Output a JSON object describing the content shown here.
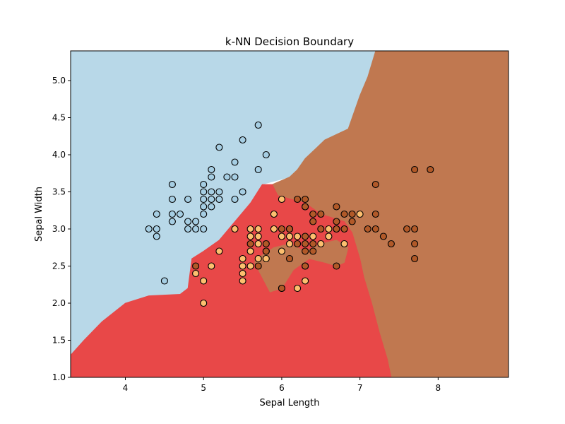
{
  "chart_data": {
    "type": "scatter",
    "title": "k-NN Decision Boundary",
    "xlabel": "Sepal Length",
    "ylabel": "Sepal Width",
    "xlim": [
      3.3,
      8.9
    ],
    "ylim": [
      1.0,
      5.4
    ],
    "xticks": [
      "4",
      "5",
      "6",
      "7",
      "8"
    ],
    "yticks": [
      "1.0",
      "1.5",
      "2.0",
      "2.5",
      "3.0",
      "3.5",
      "4.0",
      "4.5",
      "5.0"
    ],
    "grid": false,
    "legend": "none",
    "regions": [
      {
        "class": 0,
        "color": "#b8d8e8",
        "polygon": [
          [
            3.3,
            1.3
          ],
          [
            3.47,
            1.5
          ],
          [
            3.7,
            1.75
          ],
          [
            4.0,
            2.0
          ],
          [
            4.3,
            2.1
          ],
          [
            4.7,
            2.12
          ],
          [
            4.8,
            2.2
          ],
          [
            4.85,
            2.6
          ],
          [
            5.0,
            2.7
          ],
          [
            5.2,
            2.85
          ],
          [
            5.4,
            3.1
          ],
          [
            5.6,
            3.35
          ],
          [
            5.75,
            3.6
          ],
          [
            6.1,
            3.7
          ],
          [
            6.2,
            3.8
          ],
          [
            6.3,
            3.95
          ],
          [
            6.45,
            4.1
          ],
          [
            6.55,
            4.2
          ],
          [
            6.85,
            4.35
          ],
          [
            7.0,
            4.8
          ],
          [
            7.1,
            5.05
          ],
          [
            7.2,
            5.4
          ],
          [
            3.3,
            5.4
          ]
        ]
      },
      {
        "class": 2,
        "color": "#c07850",
        "polygon": [
          [
            8.9,
            5.4
          ],
          [
            7.2,
            5.4
          ],
          [
            7.1,
            5.05
          ],
          [
            7.0,
            4.8
          ],
          [
            6.85,
            4.35
          ],
          [
            6.55,
            4.2
          ],
          [
            6.45,
            4.1
          ],
          [
            6.3,
            3.95
          ],
          [
            6.2,
            3.8
          ],
          [
            6.1,
            3.7
          ],
          [
            5.88,
            3.6
          ],
          [
            5.95,
            3.45
          ],
          [
            6.3,
            3.35
          ],
          [
            6.5,
            3.2
          ],
          [
            6.8,
            3.1
          ],
          [
            6.9,
            2.95
          ],
          [
            7.0,
            2.6
          ],
          [
            7.05,
            2.35
          ],
          [
            7.15,
            2.0
          ],
          [
            7.25,
            1.6
          ],
          [
            7.35,
            1.25
          ],
          [
            7.4,
            1.0
          ],
          [
            8.9,
            1.0
          ]
        ]
      },
      {
        "class": 1,
        "color": "#e84848",
        "polygon": [
          [
            3.3,
            1.0
          ],
          [
            3.3,
            1.3
          ],
          [
            3.47,
            1.5
          ],
          [
            3.7,
            1.75
          ],
          [
            4.0,
            2.0
          ],
          [
            4.3,
            2.1
          ],
          [
            4.7,
            2.12
          ],
          [
            4.8,
            2.2
          ],
          [
            4.85,
            2.6
          ],
          [
            5.0,
            2.7
          ],
          [
            5.2,
            2.85
          ],
          [
            5.4,
            3.1
          ],
          [
            5.6,
            3.35
          ],
          [
            5.75,
            3.6
          ],
          [
            5.88,
            3.6
          ],
          [
            5.95,
            3.45
          ],
          [
            6.3,
            3.35
          ],
          [
            6.5,
            3.2
          ],
          [
            6.8,
            3.1
          ],
          [
            6.9,
            2.95
          ],
          [
            7.0,
            2.6
          ],
          [
            7.05,
            2.35
          ],
          [
            7.15,
            2.0
          ],
          [
            7.25,
            1.6
          ],
          [
            7.35,
            1.25
          ],
          [
            7.4,
            1.0
          ]
        ]
      },
      {
        "class": 2,
        "color": "#c07850",
        "polygon": [
          [
            5.65,
            2.55
          ],
          [
            5.75,
            2.35
          ],
          [
            5.85,
            2.15
          ],
          [
            6.0,
            2.2
          ],
          [
            6.15,
            2.45
          ],
          [
            6.35,
            2.6
          ],
          [
            6.55,
            2.55
          ],
          [
            6.7,
            2.5
          ],
          [
            6.8,
            2.55
          ],
          [
            6.85,
            2.75
          ],
          [
            6.7,
            2.85
          ],
          [
            6.5,
            2.8
          ],
          [
            6.3,
            2.7
          ],
          [
            6.1,
            2.8
          ],
          [
            5.9,
            2.75
          ],
          [
            5.75,
            2.65
          ]
        ]
      }
    ],
    "series": [
      {
        "class": 0,
        "color": "#a6cee3",
        "points": [
          [
            4.3,
            3.0
          ],
          [
            4.4,
            2.9
          ],
          [
            4.4,
            3.0
          ],
          [
            4.4,
            3.2
          ],
          [
            4.5,
            2.3
          ],
          [
            4.6,
            3.1
          ],
          [
            4.6,
            3.2
          ],
          [
            4.6,
            3.4
          ],
          [
            4.6,
            3.6
          ],
          [
            4.7,
            3.2
          ],
          [
            4.8,
            3.0
          ],
          [
            4.8,
            3.1
          ],
          [
            4.8,
            3.4
          ],
          [
            4.9,
            3.0
          ],
          [
            4.9,
            3.1
          ],
          [
            5.0,
            3.0
          ],
          [
            5.0,
            3.2
          ],
          [
            5.0,
            3.3
          ],
          [
            5.0,
            3.4
          ],
          [
            5.0,
            3.5
          ],
          [
            5.0,
            3.6
          ],
          [
            5.1,
            3.3
          ],
          [
            5.1,
            3.4
          ],
          [
            5.1,
            3.5
          ],
          [
            5.1,
            3.7
          ],
          [
            5.1,
            3.8
          ],
          [
            5.2,
            3.4
          ],
          [
            5.2,
            3.5
          ],
          [
            5.2,
            4.1
          ],
          [
            5.3,
            3.7
          ],
          [
            5.4,
            3.4
          ],
          [
            5.4,
            3.7
          ],
          [
            5.4,
            3.9
          ],
          [
            5.5,
            3.5
          ],
          [
            5.5,
            4.2
          ],
          [
            5.7,
            3.8
          ],
          [
            5.7,
            4.4
          ],
          [
            5.8,
            4.0
          ]
        ]
      },
      {
        "class": 1,
        "color": "#fdbf6f",
        "points": [
          [
            4.9,
            2.4
          ],
          [
            5.0,
            2.0
          ],
          [
            5.0,
            2.3
          ],
          [
            5.1,
            2.5
          ],
          [
            5.2,
            2.7
          ],
          [
            5.4,
            3.0
          ],
          [
            5.5,
            2.3
          ],
          [
            5.5,
            2.4
          ],
          [
            5.5,
            2.5
          ],
          [
            5.5,
            2.6
          ],
          [
            5.6,
            2.5
          ],
          [
            5.6,
            2.7
          ],
          [
            5.6,
            2.9
          ],
          [
            5.6,
            3.0
          ],
          [
            5.7,
            2.6
          ],
          [
            5.7,
            2.8
          ],
          [
            5.7,
            2.9
          ],
          [
            5.7,
            3.0
          ],
          [
            5.8,
            2.6
          ],
          [
            5.8,
            2.7
          ],
          [
            5.9,
            3.0
          ],
          [
            5.9,
            3.2
          ],
          [
            6.0,
            2.2
          ],
          [
            6.0,
            2.7
          ],
          [
            6.0,
            2.9
          ],
          [
            6.0,
            3.4
          ],
          [
            6.1,
            2.8
          ],
          [
            6.1,
            2.9
          ],
          [
            6.1,
            3.0
          ],
          [
            6.2,
            2.2
          ],
          [
            6.2,
            2.9
          ],
          [
            6.3,
            2.3
          ],
          [
            6.3,
            2.5
          ],
          [
            6.3,
            3.3
          ],
          [
            6.4,
            2.9
          ],
          [
            6.5,
            2.8
          ],
          [
            6.6,
            2.9
          ],
          [
            6.6,
            3.0
          ],
          [
            6.7,
            3.0
          ],
          [
            6.8,
            2.8
          ],
          [
            7.0,
            3.2
          ]
        ]
      },
      {
        "class": 2,
        "color": "#b15928",
        "points": [
          [
            4.9,
            2.5
          ],
          [
            5.6,
            2.8
          ],
          [
            5.7,
            2.5
          ],
          [
            5.8,
            2.7
          ],
          [
            5.8,
            2.8
          ],
          [
            6.0,
            2.2
          ],
          [
            6.0,
            3.0
          ],
          [
            6.1,
            2.6
          ],
          [
            6.1,
            3.0
          ],
          [
            6.2,
            2.8
          ],
          [
            6.2,
            3.4
          ],
          [
            6.3,
            2.5
          ],
          [
            6.3,
            2.7
          ],
          [
            6.3,
            2.8
          ],
          [
            6.3,
            2.9
          ],
          [
            6.3,
            3.3
          ],
          [
            6.3,
            3.4
          ],
          [
            6.4,
            2.7
          ],
          [
            6.4,
            2.8
          ],
          [
            6.4,
            3.1
          ],
          [
            6.4,
            3.2
          ],
          [
            6.5,
            3.0
          ],
          [
            6.5,
            3.2
          ],
          [
            6.7,
            2.5
          ],
          [
            6.7,
            3.0
          ],
          [
            6.7,
            3.1
          ],
          [
            6.7,
            3.3
          ],
          [
            6.8,
            3.0
          ],
          [
            6.8,
            3.2
          ],
          [
            6.9,
            3.1
          ],
          [
            6.9,
            3.2
          ],
          [
            7.1,
            3.0
          ],
          [
            7.2,
            3.0
          ],
          [
            7.2,
            3.2
          ],
          [
            7.2,
            3.6
          ],
          [
            7.3,
            2.9
          ],
          [
            7.4,
            2.8
          ],
          [
            7.6,
            3.0
          ],
          [
            7.7,
            2.6
          ],
          [
            7.7,
            2.8
          ],
          [
            7.7,
            3.0
          ],
          [
            7.7,
            3.8
          ],
          [
            7.9,
            3.8
          ]
        ]
      }
    ]
  }
}
